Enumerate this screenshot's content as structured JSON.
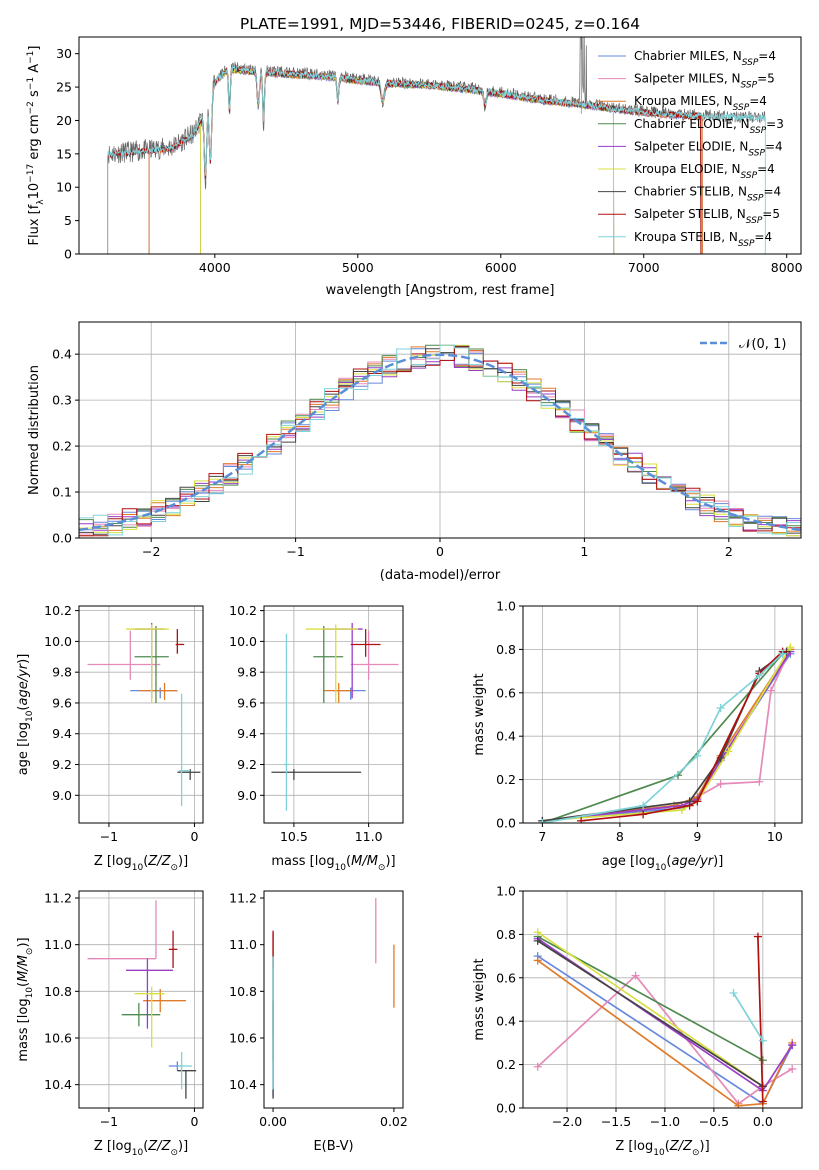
{
  "figure": {
    "title": "PLATE=1991, MJD=53446, FIBERID=0245, z=0.164"
  },
  "series_colors": {
    "Chabrier MILES": "#6688dd",
    "Salpeter MILES": "#e58ab8",
    "Kroupa MILES": "#e07a28",
    "Chabrier ELODIE": "#4f8a4f",
    "Salpeter ELODIE": "#9a3ec8",
    "Kroupa ELODIE": "#d8e040",
    "Chabrier STELIB": "#444444",
    "Salpeter STELIB": "#b01010",
    "Kroupa STELIB": "#7fd3d8"
  },
  "chart_data": [
    {
      "id": "spectrum",
      "type": "line",
      "xlabel": "wavelength [Angstrom, rest frame]",
      "ylabel": "Flux [f_λ10^-17 erg cm^-2 s^-1 A^-1]",
      "xlim": [
        3050,
        8100
      ],
      "ylim": [
        0,
        32.5
      ],
      "xticks": [
        4000,
        5000,
        6000,
        7000,
        8000
      ],
      "yticks": [
        0,
        5,
        10,
        15,
        20,
        25,
        30
      ],
      "legend_position": "right",
      "legend": [
        {
          "name": "Chabrier MILES",
          "nssp": "4"
        },
        {
          "name": "Salpeter MILES",
          "nssp": "5"
        },
        {
          "name": "Kroupa MILES",
          "nssp": "4"
        },
        {
          "name": "Chabrier ELODIE",
          "nssp": "3"
        },
        {
          "name": "Salpeter ELODIE",
          "nssp": "4"
        },
        {
          "name": "Kroupa ELODIE",
          "nssp": "4"
        },
        {
          "name": "Chabrier STELIB",
          "nssp": "4"
        },
        {
          "name": "Salpeter STELIB",
          "nssp": "5"
        },
        {
          "name": "Kroupa STELIB",
          "nssp": "4"
        }
      ],
      "data_continuum": [
        [
          3250,
          15
        ],
        [
          3500,
          15.5
        ],
        [
          3700,
          16
        ],
        [
          3850,
          18
        ],
        [
          3950,
          22
        ],
        [
          4000,
          26
        ],
        [
          4100,
          28
        ],
        [
          4300,
          27.5
        ],
        [
          4500,
          27.2
        ],
        [
          4800,
          26.8
        ],
        [
          5000,
          26.2
        ],
        [
          5200,
          25.8
        ],
        [
          5500,
          25.5
        ],
        [
          5800,
          24.8
        ],
        [
          6000,
          24.2
        ],
        [
          6300,
          23.2
        ],
        [
          6600,
          22.5
        ],
        [
          6900,
          21.6
        ],
        [
          7200,
          21
        ],
        [
          7500,
          20.7
        ],
        [
          7800,
          20.5
        ]
      ],
      "notes": "observed spectrum drawn in grey, model curves overlaid"
    },
    {
      "id": "residuals",
      "type": "histogram",
      "xlabel": "(data-model)/error",
      "ylabel": "Normed distribution",
      "xlim": [
        -2.5,
        2.5
      ],
      "ylim": [
        0,
        0.47
      ],
      "xticks": [
        -2,
        -1,
        0,
        1,
        2
      ],
      "yticks": [
        0.0,
        0.1,
        0.2,
        0.3,
        0.4
      ],
      "grid": true,
      "legend_position": "top-right",
      "reference_curve": {
        "name": "N(0,1)",
        "mean": 0,
        "sigma": 1
      }
    },
    {
      "id": "age-vs-Z",
      "type": "errorbar",
      "xlabel": "Z [log10(Z/Z_sun)]",
      "ylabel": "age  [log10(age/yr)]",
      "xlim": [
        -1.35,
        0.1
      ],
      "ylim": [
        8.82,
        10.23
      ],
      "xticks": [
        -1,
        0
      ],
      "yticks": [
        9.0,
        9.2,
        9.4,
        9.6,
        9.8,
        10.0,
        10.2
      ],
      "grid": true,
      "points": [
        {
          "series": "Chabrier MILES",
          "x": -0.4,
          "xerr": [
            0.35,
            0.2
          ],
          "y": 9.68,
          "yerr": [
            0.05,
            0.02
          ]
        },
        {
          "series": "Salpeter MILES",
          "x": -0.75,
          "xerr": [
            0.5,
            0.35
          ],
          "y": 9.85,
          "yerr": [
            0.1,
            0.22
          ]
        },
        {
          "series": "Kroupa MILES",
          "x": -0.35,
          "xerr": [
            0.3,
            0.15
          ],
          "y": 9.68,
          "yerr": [
            0.06,
            0.05
          ]
        },
        {
          "series": "Chabrier ELODIE",
          "x": -0.45,
          "xerr": [
            0.25,
            0.15
          ],
          "y": 9.9,
          "yerr": [
            0.3,
            0.2
          ]
        },
        {
          "series": "Salpeter ELODIE",
          "x": -0.5,
          "xerr": [
            0.2,
            0.15
          ],
          "y": 10.08,
          "yerr": [
            0.45,
            0.04
          ]
        },
        {
          "series": "Kroupa ELODIE",
          "x": -0.5,
          "xerr": [
            0.3,
            0.2
          ],
          "y": 10.08,
          "yerr": [
            0.48,
            0.03
          ]
        },
        {
          "series": "Chabrier STELIB",
          "x": -0.05,
          "xerr": [
            0.15,
            0.12
          ],
          "y": 9.15,
          "yerr": [
            0.05,
            0.02
          ]
        },
        {
          "series": "Salpeter STELIB",
          "x": -0.2,
          "xerr": [
            0.02,
            0.08
          ],
          "y": 9.98,
          "yerr": [
            0.06,
            0.1
          ]
        },
        {
          "series": "Kroupa STELIB",
          "x": -0.15,
          "xerr": [
            0.03,
            0.1
          ],
          "y": 9.16,
          "yerr": [
            0.23,
            0.5
          ]
        }
      ]
    },
    {
      "id": "age-vs-mass",
      "type": "errorbar",
      "xlabel": "mass [log10(M/M_sun)]",
      "ylabel": "",
      "xlim": [
        10.3,
        11.23
      ],
      "ylim": [
        8.82,
        10.23
      ],
      "xticks": [
        10.5,
        11.0
      ],
      "yticks": [
        9.0,
        9.2,
        9.4,
        9.6,
        9.8,
        10.0,
        10.2
      ],
      "grid": true,
      "points": [
        {
          "series": "Chabrier MILES",
          "x": 10.88,
          "xerr": [
            0.12,
            0.1
          ],
          "y": 9.68,
          "yerr": [
            0.06,
            0.02
          ]
        },
        {
          "series": "Salpeter MILES",
          "x": 11.0,
          "xerr": [
            0.12,
            0.2
          ],
          "y": 9.85,
          "yerr": [
            0.1,
            0.22
          ]
        },
        {
          "series": "Kroupa MILES",
          "x": 10.8,
          "xerr": [
            0.1,
            0.1
          ],
          "y": 9.68,
          "yerr": [
            0.08,
            0.05
          ]
        },
        {
          "series": "Chabrier ELODIE",
          "x": 10.7,
          "xerr": [
            0.07,
            0.13
          ],
          "y": 9.9,
          "yerr": [
            0.3,
            0.2
          ]
        },
        {
          "series": "Salpeter ELODIE",
          "x": 10.89,
          "xerr": [
            0.2,
            0.07
          ],
          "y": 10.08,
          "yerr": [
            0.45,
            0.04
          ]
        },
        {
          "series": "Kroupa ELODIE",
          "x": 10.78,
          "xerr": [
            0.2,
            0.15
          ],
          "y": 10.08,
          "yerr": [
            0.48,
            0.03
          ]
        },
        {
          "series": "Chabrier STELIB",
          "x": 10.5,
          "xerr": [
            0.15,
            0.45
          ],
          "y": 9.15,
          "yerr": [
            0.05,
            0.02
          ]
        },
        {
          "series": "Salpeter STELIB",
          "x": 10.98,
          "xerr": [
            0.1,
            0.1
          ],
          "y": 9.98,
          "yerr": [
            0.08,
            0.1
          ]
        },
        {
          "series": "Kroupa STELIB",
          "x": 10.45,
          "xerr": [
            0.02,
            0.02
          ],
          "y": 9.2,
          "yerr": [
            0.3,
            0.85
          ]
        }
      ]
    },
    {
      "id": "massweight-vs-age",
      "type": "line",
      "xlabel": "age  [log10(age/yr)]",
      "ylabel": "mass weight",
      "xlim": [
        6.75,
        10.35
      ],
      "ylim": [
        0,
        1.0
      ],
      "xticks": [
        7,
        8,
        9,
        10
      ],
      "yticks": [
        0.0,
        0.2,
        0.4,
        0.6,
        0.8,
        1.0
      ],
      "grid": true,
      "series": [
        {
          "name": "Chabrier MILES",
          "x": [
            7.0,
            8.8,
            9.0,
            9.3,
            10.2
          ],
          "y": [
            0.01,
            0.07,
            0.1,
            0.29,
            0.78
          ]
        },
        {
          "name": "Salpeter MILES",
          "x": [
            7.0,
            8.8,
            9.3,
            9.8,
            9.95,
            10.2
          ],
          "y": [
            0.01,
            0.08,
            0.18,
            0.19,
            0.61,
            0.8
          ]
        },
        {
          "name": "Kroupa MILES",
          "x": [
            7.0,
            8.7,
            9.0,
            9.3,
            10.2
          ],
          "y": [
            0.01,
            0.08,
            0.12,
            0.31,
            0.8
          ]
        },
        {
          "name": "Chabrier ELODIE",
          "x": [
            7.0,
            8.75,
            10.1
          ],
          "y": [
            0.0,
            0.22,
            0.78
          ]
        },
        {
          "name": "Salpeter ELODIE",
          "x": [
            7.0,
            8.8,
            9.0,
            9.3,
            10.2
          ],
          "y": [
            0.01,
            0.08,
            0.11,
            0.29,
            0.79
          ]
        },
        {
          "name": "Kroupa ELODIE",
          "x": [
            7.0,
            8.8,
            9.0,
            9.4,
            10.2
          ],
          "y": [
            0.01,
            0.06,
            0.1,
            0.33,
            0.81
          ]
        },
        {
          "name": "Chabrier STELIB",
          "x": [
            7.0,
            8.9,
            9.3,
            9.8,
            10.15
          ],
          "y": [
            0.01,
            0.1,
            0.3,
            0.7,
            0.79
          ]
        },
        {
          "name": "Salpeter STELIB",
          "x": [
            7.5,
            8.3,
            8.9,
            9.0,
            9.8,
            10.1
          ],
          "y": [
            0.01,
            0.04,
            0.08,
            0.1,
            0.69,
            0.79
          ]
        },
        {
          "name": "Kroupa STELIB",
          "x": [
            7.0,
            8.3,
            9.0,
            9.3,
            9.8,
            10.1
          ],
          "y": [
            0.0,
            0.08,
            0.31,
            0.53,
            0.68,
            0.78
          ]
        }
      ]
    },
    {
      "id": "mass-vs-Z",
      "type": "errorbar",
      "xlabel": "Z [log10(Z/Z_sun)]",
      "ylabel": "mass [log10(M/M_sun)]",
      "xlim": [
        -1.35,
        0.1
      ],
      "ylim": [
        10.3,
        11.23
      ],
      "xticks": [
        -1,
        0
      ],
      "yticks": [
        10.4,
        10.6,
        10.8,
        11.0,
        11.2
      ],
      "grid": true,
      "points": [
        {
          "series": "Chabrier MILES",
          "x": -0.2,
          "xerr": [
            0.1,
            0.05
          ],
          "y": 10.48,
          "yerr": [
            0.02,
            0.02
          ]
        },
        {
          "series": "Salpeter MILES",
          "x": -0.45,
          "xerr": [
            0.8,
            0.0
          ],
          "y": 10.94,
          "yerr": [
            0.0,
            0.25
          ]
        },
        {
          "series": "Kroupa MILES",
          "x": -0.4,
          "xerr": [
            0.2,
            0.3
          ],
          "y": 10.76,
          "yerr": [
            0.05,
            0.05
          ]
        },
        {
          "series": "Chabrier ELODIE",
          "x": -0.65,
          "xerr": [
            0.2,
            0.25
          ],
          "y": 10.7,
          "yerr": [
            0.05,
            0.05
          ]
        },
        {
          "series": "Salpeter ELODIE",
          "x": -0.55,
          "xerr": [
            0.25,
            0.3
          ],
          "y": 10.89,
          "yerr": [
            0.25,
            0.05
          ]
        },
        {
          "series": "Kroupa ELODIE",
          "x": -0.5,
          "xerr": [
            0.2,
            0.15
          ],
          "y": 10.79,
          "yerr": [
            0.23,
            0.03
          ]
        },
        {
          "series": "Chabrier STELIB",
          "x": -0.1,
          "xerr": [
            0.1,
            0.12
          ],
          "y": 10.46,
          "yerr": [
            0.12,
            0.0
          ]
        },
        {
          "series": "Salpeter STELIB",
          "x": -0.25,
          "xerr": [
            0.05,
            0.05
          ],
          "y": 10.98,
          "yerr": [
            0.08,
            0.08
          ]
        },
        {
          "series": "Kroupa STELIB",
          "x": -0.15,
          "xerr": [
            0.05,
            0.12
          ],
          "y": 10.48,
          "yerr": [
            0.1,
            0.06
          ]
        }
      ]
    },
    {
      "id": "mass-vs-EBV",
      "type": "errorbar",
      "xlabel": "E(B-V)",
      "ylabel": "",
      "xlim": [
        -0.0015,
        0.0215
      ],
      "ylim": [
        10.3,
        11.23
      ],
      "xticks": [
        0.0,
        0.02
      ],
      "xtick_labels": [
        "0.00",
        "0.02"
      ],
      "yticks": [
        10.4,
        10.6,
        10.8,
        11.0,
        11.2
      ],
      "grid": false,
      "points": [
        {
          "series": "Chabrier MILES",
          "x": 0.0,
          "y": 10.45,
          "yerr": [
            0.1,
            0.5
          ]
        },
        {
          "series": "Salpeter MILES",
          "x": 0.017,
          "y": 11.05,
          "yerr": [
            0.13,
            0.15
          ]
        },
        {
          "series": "Kroupa MILES",
          "x": 0.02,
          "y": 10.88,
          "yerr": [
            0.15,
            0.12
          ]
        },
        {
          "series": "Chabrier ELODIE",
          "x": 0.0,
          "y": 10.7,
          "yerr": [
            0.2,
            0.2
          ]
        },
        {
          "series": "Salpeter ELODIE",
          "x": 0.0,
          "y": 10.9,
          "yerr": [
            0.3,
            0.15
          ]
        },
        {
          "series": "Kroupa ELODIE",
          "x": 0.0,
          "y": 10.8,
          "yerr": [
            0.3,
            0.2
          ]
        },
        {
          "series": "Chabrier STELIB",
          "x": 0.0,
          "y": 10.46,
          "yerr": [
            0.12,
            0.3
          ]
        },
        {
          "series": "Salpeter STELIB",
          "x": 0.0,
          "y": 10.98,
          "yerr": [
            0.08,
            0.08
          ]
        },
        {
          "series": "Kroupa STELIB",
          "x": 0.0,
          "y": 10.5,
          "yerr": [
            0.12,
            0.45
          ]
        }
      ]
    },
    {
      "id": "massweight-vs-Z",
      "type": "line",
      "xlabel": "Z [log10(Z/Z_sun)]",
      "ylabel": "mass weight",
      "xlim": [
        -2.45,
        0.4
      ],
      "ylim": [
        0,
        1.0
      ],
      "xticks": [
        -2.0,
        -1.5,
        -1.0,
        -0.5,
        0.0
      ],
      "yticks": [
        0.0,
        0.2,
        0.4,
        0.6,
        0.8,
        1.0
      ],
      "grid": true,
      "series": [
        {
          "name": "Chabrier MILES",
          "x": [
            -2.3,
            0.0,
            0.3
          ],
          "y": [
            0.7,
            0.02,
            0.29
          ]
        },
        {
          "name": "Salpeter MILES",
          "x": [
            -2.3,
            -1.3,
            -0.25,
            0.0,
            0.3
          ],
          "y": [
            0.19,
            0.61,
            0.02,
            0.1,
            0.18
          ]
        },
        {
          "name": "Kroupa MILES",
          "x": [
            -2.3,
            -0.25,
            0.0,
            0.3
          ],
          "y": [
            0.68,
            0.01,
            0.02,
            0.3
          ]
        },
        {
          "name": "Chabrier ELODIE",
          "x": [
            -2.3,
            0.0
          ],
          "y": [
            0.79,
            0.22
          ]
        },
        {
          "name": "Salpeter ELODIE",
          "x": [
            -2.3,
            0.0,
            0.3
          ],
          "y": [
            0.78,
            0.08,
            0.29
          ]
        },
        {
          "name": "Kroupa ELODIE",
          "x": [
            -2.3,
            0.0
          ],
          "y": [
            0.81,
            0.1
          ]
        },
        {
          "name": "Chabrier STELIB",
          "x": [
            -2.3,
            0.0
          ],
          "y": [
            0.77,
            0.1
          ]
        },
        {
          "name": "Salpeter STELIB",
          "x": [
            -0.05,
            0.0
          ],
          "y": [
            0.79,
            0.03
          ]
        },
        {
          "name": "Kroupa STELIB",
          "x": [
            -0.3,
            0.0
          ],
          "y": [
            0.53,
            0.31
          ]
        }
      ]
    }
  ]
}
